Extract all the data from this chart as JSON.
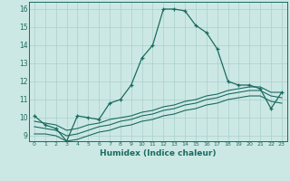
{
  "xlabel": "Humidex (Indice chaleur)",
  "bg_color": "#cce8e5",
  "grid_color": "#aacfcb",
  "line_color": "#1a6b60",
  "xlim": [
    -0.5,
    23.5
  ],
  "ylim": [
    8.7,
    16.4
  ],
  "xticks": [
    0,
    1,
    2,
    3,
    4,
    5,
    6,
    7,
    8,
    9,
    10,
    11,
    12,
    13,
    14,
    15,
    16,
    17,
    18,
    19,
    20,
    21,
    22,
    23
  ],
  "yticks": [
    9,
    10,
    11,
    12,
    13,
    14,
    15,
    16
  ],
  "line1_x": [
    0,
    1,
    2,
    3,
    4,
    5,
    6,
    7,
    8,
    9,
    10,
    11,
    12,
    13,
    14,
    15,
    16,
    17,
    18,
    19,
    20,
    21,
    22,
    23
  ],
  "line1_y": [
    10.1,
    9.6,
    9.4,
    8.7,
    10.1,
    10.0,
    9.9,
    10.8,
    11.0,
    11.8,
    13.3,
    14.0,
    16.0,
    16.0,
    15.9,
    15.1,
    14.7,
    13.8,
    12.0,
    11.8,
    11.8,
    11.6,
    10.5,
    11.4
  ],
  "line2_x": [
    0,
    1,
    2,
    3,
    4,
    5,
    6,
    7,
    8,
    9,
    10,
    11,
    12,
    13,
    14,
    15,
    16,
    17,
    18,
    19,
    20,
    21,
    22,
    23
  ],
  "line2_y": [
    9.8,
    9.7,
    9.6,
    9.3,
    9.4,
    9.6,
    9.7,
    9.9,
    10.0,
    10.1,
    10.3,
    10.4,
    10.6,
    10.7,
    10.9,
    11.0,
    11.2,
    11.3,
    11.5,
    11.6,
    11.7,
    11.7,
    11.4,
    11.4
  ],
  "line3_x": [
    0,
    1,
    2,
    3,
    4,
    5,
    6,
    7,
    8,
    9,
    10,
    11,
    12,
    13,
    14,
    15,
    16,
    17,
    18,
    19,
    20,
    21,
    22,
    23
  ],
  "line3_y": [
    9.5,
    9.4,
    9.3,
    9.0,
    9.1,
    9.3,
    9.5,
    9.6,
    9.8,
    9.9,
    10.1,
    10.2,
    10.4,
    10.5,
    10.7,
    10.8,
    11.0,
    11.1,
    11.3,
    11.4,
    11.5,
    11.5,
    11.2,
    11.1
  ],
  "line4_x": [
    0,
    1,
    2,
    3,
    4,
    5,
    6,
    7,
    8,
    9,
    10,
    11,
    12,
    13,
    14,
    15,
    16,
    17,
    18,
    19,
    20,
    21,
    22,
    23
  ],
  "line4_y": [
    9.1,
    9.1,
    9.0,
    8.7,
    8.8,
    9.0,
    9.2,
    9.3,
    9.5,
    9.6,
    9.8,
    9.9,
    10.1,
    10.2,
    10.4,
    10.5,
    10.7,
    10.8,
    11.0,
    11.1,
    11.2,
    11.2,
    10.9,
    10.8
  ]
}
